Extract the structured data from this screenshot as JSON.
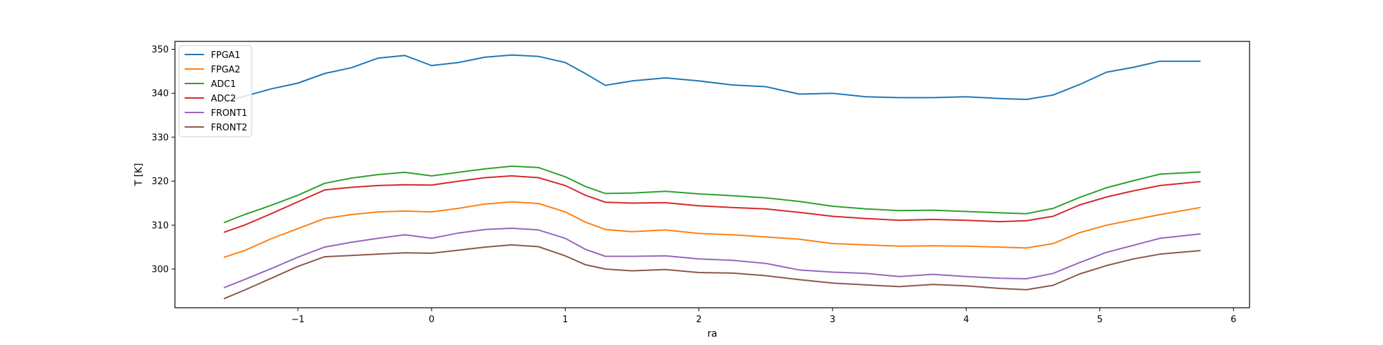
{
  "chart_data": {
    "type": "line",
    "title": "",
    "xlabel": "ra",
    "ylabel": "T [K]",
    "xlim": [
      -1.92,
      6.12
    ],
    "ylim": [
      291.2,
      351.8
    ],
    "xticks": [
      -1,
      0,
      1,
      2,
      3,
      4,
      5,
      6
    ],
    "xtick_labels": [
      "−1",
      "0",
      "1",
      "2",
      "3",
      "4",
      "5",
      "6"
    ],
    "yticks": [
      300,
      310,
      320,
      330,
      340,
      350
    ],
    "ytick_labels": [
      "300",
      "310",
      "320",
      "330",
      "340",
      "350"
    ],
    "grid": false,
    "legend_placement": "upper-left",
    "x": [
      -1.55,
      -1.4,
      -1.2,
      -1.0,
      -0.8,
      -0.6,
      -0.4,
      -0.2,
      0.0,
      0.2,
      0.4,
      0.6,
      0.8,
      1.0,
      1.15,
      1.3,
      1.5,
      1.75,
      2.0,
      2.25,
      2.5,
      2.75,
      3.0,
      3.25,
      3.5,
      3.75,
      4.0,
      4.25,
      4.45,
      4.65,
      4.85,
      5.05,
      5.25,
      5.45,
      5.75
    ],
    "series": [
      {
        "name": "FPGA1",
        "color": "#1f77b4",
        "values": [
          338.0,
          339.3,
          341.0,
          342.3,
          344.5,
          345.8,
          348.0,
          348.6,
          346.3,
          347.0,
          348.2,
          348.7,
          348.4,
          347.0,
          344.5,
          341.8,
          342.8,
          343.5,
          342.8,
          341.9,
          341.5,
          339.8,
          340.0,
          339.2,
          339.0,
          339.0,
          339.2,
          338.8,
          338.6,
          339.6,
          342.0,
          344.8,
          345.9,
          347.3,
          347.3
        ]
      },
      {
        "name": "FPGA2",
        "color": "#ff7f0e",
        "values": [
          302.7,
          304.2,
          306.9,
          309.2,
          311.5,
          312.4,
          313.0,
          313.2,
          313.0,
          313.8,
          314.8,
          315.3,
          314.9,
          313.0,
          310.7,
          309.0,
          308.5,
          308.9,
          308.1,
          307.8,
          307.3,
          306.8,
          305.8,
          305.5,
          305.2,
          305.3,
          305.2,
          305.0,
          304.8,
          305.8,
          308.3,
          310.0,
          311.2,
          312.4,
          314.0
        ]
      },
      {
        "name": "ADC1",
        "color": "#2ca02c",
        "values": [
          310.6,
          312.4,
          314.5,
          316.8,
          319.5,
          320.7,
          321.5,
          322.0,
          321.2,
          322.0,
          322.8,
          323.4,
          323.1,
          321.0,
          318.8,
          317.2,
          317.3,
          317.7,
          317.1,
          316.7,
          316.2,
          315.4,
          314.3,
          313.7,
          313.3,
          313.4,
          313.1,
          312.8,
          312.6,
          313.8,
          316.3,
          318.5,
          320.1,
          321.6,
          322.1
        ]
      },
      {
        "name": "ADC2",
        "color": "#d62728",
        "values": [
          308.4,
          310.0,
          312.6,
          315.3,
          318.0,
          318.6,
          319.0,
          319.2,
          319.1,
          320.0,
          320.8,
          321.2,
          320.8,
          319.0,
          316.8,
          315.2,
          315.0,
          315.1,
          314.4,
          314.0,
          313.7,
          312.9,
          312.0,
          311.5,
          311.1,
          311.3,
          311.1,
          310.8,
          311.0,
          312.0,
          314.6,
          316.4,
          317.8,
          319.0,
          319.9
        ]
      },
      {
        "name": "FRONT1",
        "color": "#9467bd",
        "values": [
          295.8,
          297.6,
          300.1,
          302.7,
          305.0,
          306.1,
          307.0,
          307.8,
          307.0,
          308.2,
          309.0,
          309.3,
          308.9,
          307.0,
          304.5,
          302.9,
          302.9,
          303.0,
          302.3,
          302.0,
          301.3,
          299.8,
          299.3,
          299.0,
          298.3,
          298.8,
          298.3,
          297.9,
          297.8,
          299.0,
          301.5,
          303.8,
          305.4,
          307.0,
          308.0
        ]
      },
      {
        "name": "FRONT2",
        "color": "#8c564b",
        "values": [
          293.3,
          295.2,
          297.9,
          300.6,
          302.8,
          303.1,
          303.4,
          303.7,
          303.6,
          304.3,
          305.0,
          305.5,
          305.1,
          303.0,
          301.0,
          300.0,
          299.6,
          299.9,
          299.2,
          299.1,
          298.5,
          297.6,
          296.8,
          296.4,
          296.0,
          296.5,
          296.2,
          295.6,
          295.3,
          296.3,
          298.9,
          300.8,
          302.3,
          303.4,
          304.2
        ]
      }
    ]
  }
}
